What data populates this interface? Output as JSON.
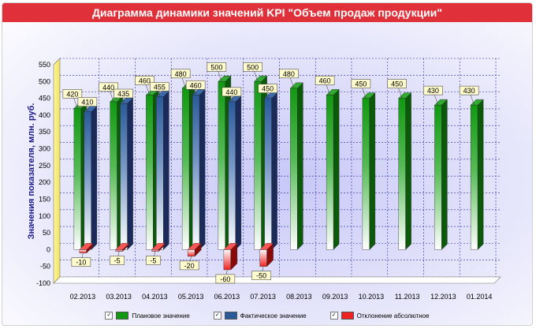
{
  "title": "Диаграмма динамики значений KPI \"Объем продаж продукции\"",
  "chart_data": {
    "type": "bar",
    "ylabel": "Значения показателя, млн. руб.",
    "xlabel": "",
    "ylim": [
      -100,
      550
    ],
    "yticks": [
      -100,
      -50,
      0,
      50,
      100,
      150,
      200,
      250,
      300,
      350,
      400,
      450,
      500,
      550
    ],
    "grid": true,
    "legend_position": "bottom",
    "categories": [
      "02.2013",
      "03.2013",
      "04.2013",
      "05.2013",
      "06.2013",
      "07.2013",
      "08.2013",
      "09.2013",
      "10.2013",
      "11.2013",
      "12.2013",
      "01.2014"
    ],
    "series": [
      {
        "name": "Плановое значение",
        "color": "#119911",
        "values": [
          420,
          440,
          460,
          480,
          500,
          500,
          480,
          460,
          450,
          450,
          430,
          430
        ]
      },
      {
        "name": "Фактическое значение",
        "color": "#2a5a9a",
        "values": [
          410,
          435,
          455,
          460,
          440,
          450,
          null,
          null,
          null,
          null,
          null,
          null
        ]
      },
      {
        "name": "Отклонение абсолютное",
        "color": "#ee2222",
        "values": [
          -10,
          -5,
          -5,
          -20,
          -60,
          -50,
          null,
          null,
          null,
          null,
          null,
          null
        ]
      }
    ]
  },
  "legend": {
    "check_mark": "✓",
    "items": [
      {
        "label": "Плановое значение",
        "color": "#119911"
      },
      {
        "label": "Фактическое значение",
        "color": "#2a5a9a"
      },
      {
        "label": "Отклонение абсолютное",
        "color": "#ee2222"
      }
    ]
  }
}
